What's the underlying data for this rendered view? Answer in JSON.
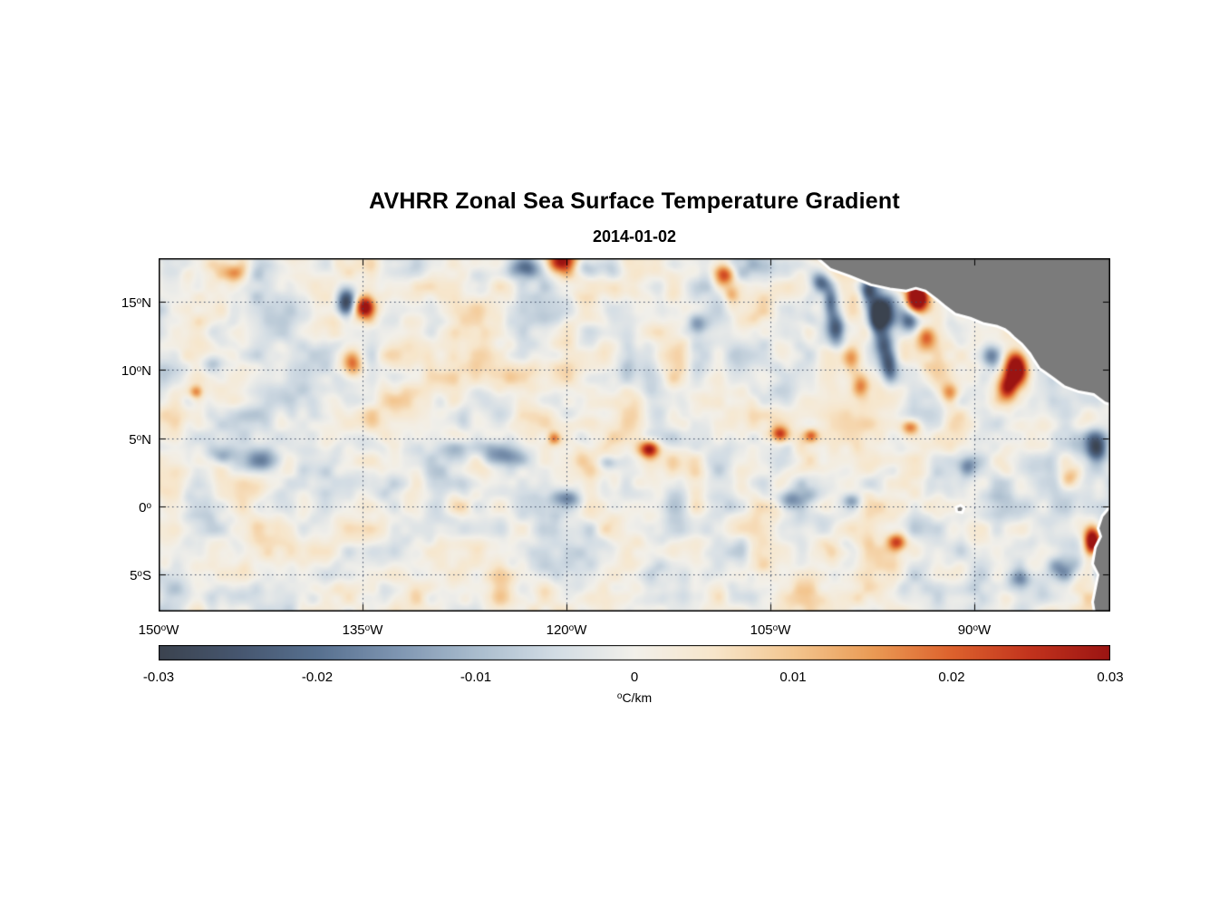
{
  "chart_data": {
    "type": "heatmap",
    "title": "AVHRR Zonal Sea Surface Temperature Gradient",
    "subtitle": "2014-01-02",
    "deg": "o",
    "x_axis": {
      "range": [
        -150,
        -80
      ],
      "tick_positions": [
        -150,
        -135,
        -120,
        -105,
        -90
      ],
      "tick_labels": [
        {
          "num": "150",
          "dir": "W"
        },
        {
          "num": "135",
          "dir": "W"
        },
        {
          "num": "120",
          "dir": "W"
        },
        {
          "num": "105",
          "dir": "W"
        },
        {
          "num": "90",
          "dir": "W"
        }
      ]
    },
    "y_axis": {
      "range": [
        -7.7,
        18.2
      ],
      "tick_positions": [
        15,
        10,
        5,
        0,
        -5
      ],
      "tick_labels": [
        {
          "num": "15",
          "dir": "N"
        },
        {
          "num": "10",
          "dir": "N"
        },
        {
          "num": "5",
          "dir": "N"
        },
        {
          "num": "0",
          "dir": ""
        },
        {
          "num": "5",
          "dir": "S"
        }
      ]
    },
    "grid": {
      "x": [
        -135,
        -120,
        -105,
        -90
      ],
      "y": [
        15,
        10,
        5,
        0,
        -5
      ],
      "style": "dotted",
      "color": "#3d4a63"
    },
    "colorbar": {
      "range": [
        -0.03,
        0.03
      ],
      "ticks": [
        "-0.03",
        "-0.02",
        "-0.01",
        "0",
        "0.01",
        "0.02",
        "0.03"
      ],
      "unit_sup": "o",
      "unit_rest": "C/km",
      "stops": [
        [
          -0.03,
          "#3b434f"
        ],
        [
          -0.025,
          "#46566f"
        ],
        [
          -0.02,
          "#57708f"
        ],
        [
          -0.015,
          "#7e95b1"
        ],
        [
          -0.01,
          "#a9bccd"
        ],
        [
          -0.005,
          "#d2dce4"
        ],
        [
          0.0,
          "#f2f0ea"
        ],
        [
          0.005,
          "#f7e6cb"
        ],
        [
          0.01,
          "#f3c690"
        ],
        [
          0.015,
          "#ea9b55"
        ],
        [
          0.02,
          "#dd622d"
        ],
        [
          0.025,
          "#c2331d"
        ],
        [
          0.03,
          "#9b1412"
        ]
      ]
    },
    "land_color": "#7b7b7b",
    "coast_fringe_color": "#ffffff",
    "land_polygons": [
      [
        [
          -102.0,
          18.6
        ],
        [
          -100.6,
          17.4
        ],
        [
          -99.2,
          16.9
        ],
        [
          -97.6,
          16.25
        ],
        [
          -96.2,
          15.95
        ],
        [
          -95.0,
          15.8
        ],
        [
          -94.3,
          16.0
        ],
        [
          -93.6,
          15.8
        ],
        [
          -92.8,
          15.2
        ],
        [
          -92.2,
          14.7
        ],
        [
          -91.4,
          14.1
        ],
        [
          -90.3,
          13.8
        ],
        [
          -89.3,
          13.4
        ],
        [
          -88.3,
          13.2
        ],
        [
          -87.8,
          13.0
        ],
        [
          -87.4,
          12.7
        ],
        [
          -87.1,
          12.4
        ],
        [
          -86.5,
          11.9
        ],
        [
          -85.9,
          11.2
        ],
        [
          -85.6,
          10.7
        ],
        [
          -85.2,
          10.1
        ],
        [
          -84.9,
          9.9
        ],
        [
          -84.2,
          9.4
        ],
        [
          -83.4,
          8.8
        ],
        [
          -82.3,
          8.4
        ],
        [
          -81.2,
          8.2
        ],
        [
          -80.4,
          7.6
        ],
        [
          -79.5,
          7.3
        ],
        [
          -79.0,
          7.2
        ],
        [
          -79.0,
          18.6
        ]
      ],
      [
        [
          -79.0,
          0.3
        ],
        [
          -80.0,
          0.0
        ],
        [
          -80.6,
          -0.7
        ],
        [
          -80.9,
          -1.6
        ],
        [
          -80.7,
          -2.2
        ],
        [
          -81.1,
          -3.0
        ],
        [
          -81.3,
          -4.2
        ],
        [
          -80.9,
          -5.0
        ],
        [
          -81.1,
          -6.0
        ],
        [
          -81.3,
          -7.0
        ],
        [
          -81.1,
          -8.2
        ],
        [
          -79.0,
          -8.2
        ]
      ],
      [
        [
          -91.35,
          -0.05
        ],
        [
          -91.0,
          0.1
        ],
        [
          -90.75,
          -0.1
        ],
        [
          -90.9,
          -0.45
        ],
        [
          -91.3,
          -0.35
        ]
      ]
    ],
    "noise": {
      "octaves": [
        {
          "scale": 1.6,
          "amp": 0.006,
          "seed": 11
        },
        {
          "scale": 3.4,
          "amp": 0.0042,
          "seed": 29
        },
        {
          "scale": 0.85,
          "amp": 0.0028,
          "seed": 53
        }
      ]
    },
    "features": [
      {
        "lon": -136.2,
        "lat": 14.85,
        "rx": 0.5,
        "ry": 0.7,
        "a": -0.034
      },
      {
        "lon": -134.85,
        "lat": 14.6,
        "rx": 0.5,
        "ry": 0.6,
        "a": 0.032
      },
      {
        "lon": -122.9,
        "lat": 17.5,
        "rx": 1.0,
        "ry": 0.55,
        "a": -0.02
      },
      {
        "lon": -120.3,
        "lat": 18.0,
        "rx": 0.8,
        "ry": 0.65,
        "a": 0.03
      },
      {
        "lon": -118.6,
        "lat": 17.6,
        "rx": 0.7,
        "ry": 0.5,
        "a": -0.013
      },
      {
        "lon": -108.4,
        "lat": 16.9,
        "rx": 0.55,
        "ry": 0.6,
        "a": 0.024
      },
      {
        "lon": -107.9,
        "lat": 15.5,
        "rx": 0.4,
        "ry": 0.5,
        "a": 0.015
      },
      {
        "lon": -110.3,
        "lat": 13.3,
        "rx": 0.6,
        "ry": 0.6,
        "a": -0.014
      },
      {
        "lon": -101.3,
        "lat": 16.5,
        "rx": 0.5,
        "ry": 0.6,
        "a": -0.025
      },
      {
        "lon": -100.6,
        "lat": 15.0,
        "rx": 0.4,
        "ry": 0.9,
        "a": -0.022
      },
      {
        "lon": -100.1,
        "lat": 13.2,
        "rx": 0.45,
        "ry": 0.9,
        "a": -0.02
      },
      {
        "lon": -97.8,
        "lat": 15.8,
        "rx": 0.4,
        "ry": 0.7,
        "a": -0.024
      },
      {
        "lon": -97.2,
        "lat": 13.8,
        "rx": 0.4,
        "ry": 1.0,
        "a": -0.026
      },
      {
        "lon": -96.6,
        "lat": 11.6,
        "rx": 0.45,
        "ry": 1.0,
        "a": -0.022
      },
      {
        "lon": -96.2,
        "lat": 10.2,
        "rx": 0.4,
        "ry": 0.7,
        "a": -0.018
      },
      {
        "lon": -96.6,
        "lat": 14.3,
        "rx": 0.55,
        "ry": 0.9,
        "a": -0.028
      },
      {
        "lon": -94.2,
        "lat": 15.2,
        "rx": 0.6,
        "ry": 0.8,
        "a": 0.046
      },
      {
        "lon": -94.7,
        "lat": 13.6,
        "rx": 0.5,
        "ry": 0.6,
        "a": -0.024
      },
      {
        "lon": -99.1,
        "lat": 10.8,
        "rx": 0.5,
        "ry": 0.8,
        "a": 0.018
      },
      {
        "lon": -98.3,
        "lat": 8.9,
        "rx": 0.5,
        "ry": 0.6,
        "a": 0.015
      },
      {
        "lon": -93.5,
        "lat": 12.2,
        "rx": 0.5,
        "ry": 0.6,
        "a": 0.018
      },
      {
        "lon": -86.9,
        "lat": 10.1,
        "rx": 0.55,
        "ry": 0.9,
        "a": 0.044
      },
      {
        "lon": -87.6,
        "lat": 8.7,
        "rx": 0.5,
        "ry": 0.6,
        "a": 0.02
      },
      {
        "lon": -88.8,
        "lat": 11.0,
        "rx": 0.5,
        "ry": 0.6,
        "a": -0.016
      },
      {
        "lon": -135.8,
        "lat": 10.4,
        "rx": 0.5,
        "ry": 0.7,
        "a": 0.024
      },
      {
        "lon": -144.3,
        "lat": 17.1,
        "rx": 0.6,
        "ry": 0.5,
        "a": 0.012
      },
      {
        "lon": -147.2,
        "lat": 8.4,
        "rx": 0.35,
        "ry": 0.35,
        "a": 0.02
      },
      {
        "lon": -146.0,
        "lat": 10.4,
        "rx": 0.7,
        "ry": 0.5,
        "a": -0.012
      },
      {
        "lon": -145.4,
        "lat": 3.8,
        "rx": 0.7,
        "ry": 0.5,
        "a": -0.014
      },
      {
        "lon": -142.4,
        "lat": 3.4,
        "rx": 1.0,
        "ry": 0.6,
        "a": -0.016
      },
      {
        "lon": -128.1,
        "lat": 4.3,
        "rx": 0.7,
        "ry": 0.5,
        "a": -0.014
      },
      {
        "lon": -124.8,
        "lat": 3.9,
        "rx": 1.2,
        "ry": 0.7,
        "a": -0.021
      },
      {
        "lon": -120.9,
        "lat": 5.0,
        "rx": 0.35,
        "ry": 0.35,
        "a": 0.02
      },
      {
        "lon": -113.9,
        "lat": 4.2,
        "rx": 0.5,
        "ry": 0.45,
        "a": 0.03
      },
      {
        "lon": -119.8,
        "lat": 0.6,
        "rx": 0.8,
        "ry": 0.45,
        "a": -0.014
      },
      {
        "lon": -116.8,
        "lat": 3.2,
        "rx": 0.6,
        "ry": 0.4,
        "a": -0.013
      },
      {
        "lon": -104.3,
        "lat": 5.3,
        "rx": 0.45,
        "ry": 0.4,
        "a": 0.024
      },
      {
        "lon": -102.0,
        "lat": 5.2,
        "rx": 0.35,
        "ry": 0.35,
        "a": 0.017
      },
      {
        "lon": -103.5,
        "lat": 0.6,
        "rx": 0.8,
        "ry": 0.5,
        "a": -0.016
      },
      {
        "lon": -99.0,
        "lat": 0.4,
        "rx": 0.5,
        "ry": 0.4,
        "a": -0.013
      },
      {
        "lon": -94.7,
        "lat": 5.8,
        "rx": 0.45,
        "ry": 0.4,
        "a": 0.018
      },
      {
        "lon": -95.7,
        "lat": -2.6,
        "rx": 0.5,
        "ry": 0.45,
        "a": 0.022
      },
      {
        "lon": -90.5,
        "lat": 2.8,
        "rx": 0.5,
        "ry": 0.5,
        "a": -0.015
      },
      {
        "lon": -81.0,
        "lat": 4.3,
        "rx": 0.6,
        "ry": 0.9,
        "a": -0.027
      },
      {
        "lon": -80.4,
        "lat": -4.2,
        "rx": 0.5,
        "ry": 1.2,
        "a": -0.022
      },
      {
        "lon": -83.6,
        "lat": -4.6,
        "rx": 0.8,
        "ry": 0.6,
        "a": -0.016
      },
      {
        "lon": -86.6,
        "lat": -5.3,
        "rx": 0.7,
        "ry": 0.5,
        "a": -0.013
      },
      {
        "lon": -81.3,
        "lat": -2.6,
        "rx": 0.45,
        "ry": 0.7,
        "a": 0.046
      },
      {
        "lon": -83.0,
        "lat": 2.0,
        "rx": 0.5,
        "ry": 0.5,
        "a": 0.014
      },
      {
        "lon": -91.8,
        "lat": 8.3,
        "rx": 0.5,
        "ry": 0.5,
        "a": 0.016
      }
    ]
  }
}
